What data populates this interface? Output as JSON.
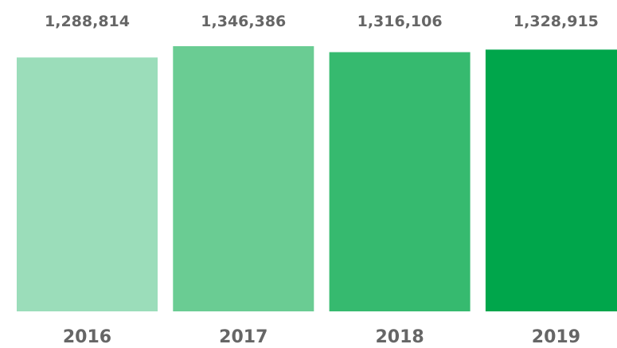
{
  "chart_data": {
    "type": "bar",
    "categories": [
      "2016",
      "2017",
      "2018",
      "2019"
    ],
    "values": [
      1288814,
      1346386,
      1316106,
      1328915
    ],
    "value_labels": [
      "1,288,814",
      "1,346,386",
      "1,316,106",
      "1,328,915"
    ],
    "colors": [
      "#9bddba",
      "#6acc93",
      "#36ba6f",
      "#00a64b"
    ],
    "label_color": "#666666",
    "title": "",
    "xlabel": "",
    "ylabel": "",
    "ylim": [
      0,
      1346386
    ],
    "grid": false,
    "legend": "none"
  }
}
